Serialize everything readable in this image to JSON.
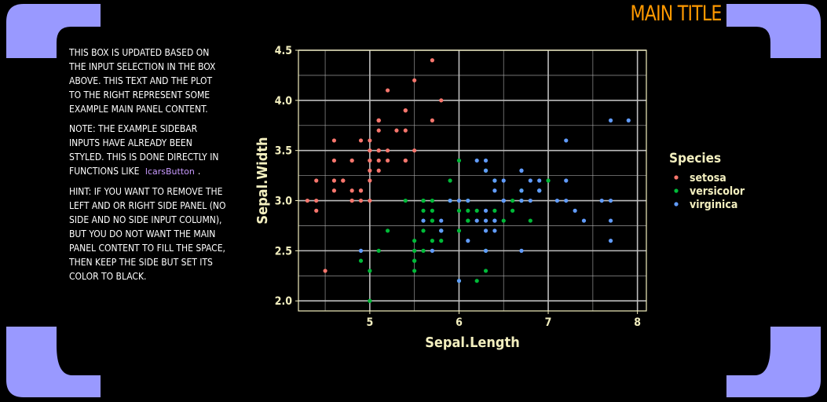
{
  "header": {
    "title": "MAIN TITLE"
  },
  "colors": {
    "frame": "#9999ff",
    "title": "#ff9900",
    "code": "#c99aff",
    "axis_text": "#f3efbf",
    "grid": "#bdbdbd"
  },
  "sidebar": {
    "para1": "THIS BOX IS UPDATED BASED ON THE INPUT SELECTION IN THE BOX ABOVE. THIS TEXT AND THE PLOT TO THE RIGHT REPRESENT SOME EXAMPLE MAIN PANEL CONTENT.",
    "para2_start": "NOTE: THE EXAMPLE SIDEBAR INPUTS HAVE ALREADY BEEN STYLED. THIS IS DONE DIRECTLY IN FUNCTIONS LIKE",
    "para2_code": "lcarsButton",
    "para2_end": ".",
    "para3": "HINT: IF YOU WANT TO REMOVE THE LEFT AND OR RIGHT SIDE PANEL (NO SIDE AND NO SIDE INPUT COLUMN), BUT YOU DO NOT WANT THE MAIN PANEL CONTENT TO FILL THE SPACE, THEN KEEP THE SIDE BUT SET ITS COLOR TO BLACK."
  },
  "chart_data": {
    "type": "scatter",
    "xlabel": "Sepal.Length",
    "ylabel": "Sepal.Width",
    "xlim": [
      4.2,
      8.1
    ],
    "ylim": [
      1.9,
      4.5
    ],
    "xticks": [
      5,
      6,
      7,
      8
    ],
    "yticks": [
      2.0,
      2.5,
      3.0,
      3.5,
      4.0,
      4.5
    ],
    "ytick_labels": [
      "2.0",
      "2.5",
      "3.0",
      "3.5",
      "4.0",
      "4.5"
    ],
    "grid": true,
    "legend": {
      "title": "Species",
      "position": "right"
    },
    "series": [
      {
        "name": "setosa",
        "color": "#f8766d",
        "points": [
          [
            5.1,
            3.5
          ],
          [
            4.9,
            3.0
          ],
          [
            4.7,
            3.2
          ],
          [
            4.6,
            3.1
          ],
          [
            5.0,
            3.6
          ],
          [
            5.4,
            3.9
          ],
          [
            4.6,
            3.4
          ],
          [
            5.0,
            3.4
          ],
          [
            4.4,
            2.9
          ],
          [
            4.9,
            3.1
          ],
          [
            5.4,
            3.7
          ],
          [
            4.8,
            3.4
          ],
          [
            4.8,
            3.0
          ],
          [
            4.3,
            3.0
          ],
          [
            5.8,
            4.0
          ],
          [
            5.7,
            4.4
          ],
          [
            5.4,
            3.9
          ],
          [
            5.1,
            3.5
          ],
          [
            5.7,
            3.8
          ],
          [
            5.1,
            3.8
          ],
          [
            5.4,
            3.4
          ],
          [
            5.1,
            3.7
          ],
          [
            4.6,
            3.6
          ],
          [
            5.1,
            3.3
          ],
          [
            4.8,
            3.4
          ],
          [
            5.0,
            3.0
          ],
          [
            5.0,
            3.4
          ],
          [
            5.2,
            3.5
          ],
          [
            5.2,
            3.4
          ],
          [
            4.7,
            3.2
          ],
          [
            4.8,
            3.1
          ],
          [
            5.4,
            3.4
          ],
          [
            5.2,
            4.1
          ],
          [
            5.5,
            4.2
          ],
          [
            4.9,
            3.1
          ],
          [
            5.0,
            3.2
          ],
          [
            5.5,
            3.5
          ],
          [
            4.9,
            3.6
          ],
          [
            4.4,
            3.0
          ],
          [
            5.1,
            3.4
          ],
          [
            5.0,
            3.5
          ],
          [
            4.5,
            2.3
          ],
          [
            4.4,
            3.2
          ],
          [
            5.0,
            3.5
          ],
          [
            5.1,
            3.8
          ],
          [
            4.8,
            3.0
          ],
          [
            5.1,
            3.8
          ],
          [
            4.6,
            3.2
          ],
          [
            5.3,
            3.7
          ],
          [
            5.0,
            3.3
          ]
        ]
      },
      {
        "name": "versicolor",
        "color": "#00ba38",
        "points": [
          [
            7.0,
            3.2
          ],
          [
            6.4,
            3.2
          ],
          [
            6.9,
            3.1
          ],
          [
            5.5,
            2.3
          ],
          [
            6.5,
            2.8
          ],
          [
            5.7,
            2.8
          ],
          [
            6.3,
            3.3
          ],
          [
            4.9,
            2.4
          ],
          [
            6.6,
            2.9
          ],
          [
            5.2,
            2.7
          ],
          [
            5.0,
            2.0
          ],
          [
            5.9,
            3.0
          ],
          [
            6.0,
            2.2
          ],
          [
            6.1,
            2.9
          ],
          [
            5.6,
            2.9
          ],
          [
            6.7,
            3.1
          ],
          [
            5.6,
            3.0
          ],
          [
            5.8,
            2.7
          ],
          [
            6.2,
            2.2
          ],
          [
            5.6,
            2.5
          ],
          [
            5.9,
            3.2
          ],
          [
            6.1,
            2.8
          ],
          [
            6.3,
            2.5
          ],
          [
            6.1,
            2.8
          ],
          [
            6.4,
            2.9
          ],
          [
            6.6,
            3.0
          ],
          [
            6.8,
            2.8
          ],
          [
            6.7,
            3.0
          ],
          [
            6.0,
            2.9
          ],
          [
            5.7,
            2.6
          ],
          [
            5.5,
            2.4
          ],
          [
            5.5,
            2.4
          ],
          [
            5.8,
            2.7
          ],
          [
            6.0,
            2.7
          ],
          [
            5.4,
            3.0
          ],
          [
            6.0,
            3.4
          ],
          [
            6.7,
            3.1
          ],
          [
            6.3,
            2.3
          ],
          [
            5.6,
            3.0
          ],
          [
            5.5,
            2.5
          ],
          [
            5.5,
            2.6
          ],
          [
            6.1,
            3.0
          ],
          [
            5.8,
            2.6
          ],
          [
            5.0,
            2.3
          ],
          [
            5.6,
            2.7
          ],
          [
            5.7,
            3.0
          ],
          [
            5.7,
            2.9
          ],
          [
            6.2,
            2.9
          ],
          [
            5.1,
            2.5
          ],
          [
            5.7,
            2.8
          ]
        ]
      },
      {
        "name": "virginica",
        "color": "#619cff",
        "points": [
          [
            6.3,
            3.3
          ],
          [
            5.8,
            2.7
          ],
          [
            7.1,
            3.0
          ],
          [
            6.3,
            2.9
          ],
          [
            6.5,
            3.0
          ],
          [
            7.6,
            3.0
          ],
          [
            4.9,
            2.5
          ],
          [
            7.3,
            2.9
          ],
          [
            6.7,
            2.5
          ],
          [
            7.2,
            3.6
          ],
          [
            6.5,
            3.2
          ],
          [
            6.4,
            2.7
          ],
          [
            6.8,
            3.0
          ],
          [
            5.7,
            2.5
          ],
          [
            5.8,
            2.8
          ],
          [
            6.4,
            3.2
          ],
          [
            6.5,
            3.0
          ],
          [
            7.7,
            3.8
          ],
          [
            7.7,
            2.6
          ],
          [
            6.0,
            2.2
          ],
          [
            6.9,
            3.2
          ],
          [
            5.6,
            2.8
          ],
          [
            7.7,
            2.8
          ],
          [
            6.3,
            2.7
          ],
          [
            6.7,
            3.3
          ],
          [
            7.2,
            3.2
          ],
          [
            6.2,
            2.8
          ],
          [
            6.1,
            3.0
          ],
          [
            6.4,
            2.8
          ],
          [
            7.2,
            3.0
          ],
          [
            7.4,
            2.8
          ],
          [
            7.9,
            3.8
          ],
          [
            6.4,
            2.8
          ],
          [
            6.3,
            2.8
          ],
          [
            6.1,
            2.6
          ],
          [
            7.7,
            3.0
          ],
          [
            6.3,
            3.4
          ],
          [
            6.4,
            3.1
          ],
          [
            6.0,
            3.0
          ],
          [
            6.9,
            3.1
          ],
          [
            6.7,
            3.1
          ],
          [
            6.9,
            3.1
          ],
          [
            5.8,
            2.7
          ],
          [
            6.8,
            3.2
          ],
          [
            6.7,
            3.3
          ],
          [
            6.7,
            3.0
          ],
          [
            6.3,
            2.5
          ],
          [
            6.5,
            3.0
          ],
          [
            6.2,
            3.4
          ],
          [
            5.9,
            3.0
          ]
        ]
      }
    ]
  }
}
